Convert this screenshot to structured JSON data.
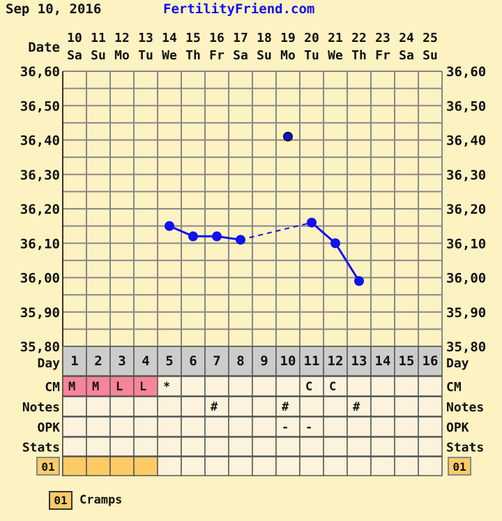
{
  "header": {
    "date": "Sep 10, 2016",
    "site": "FertilityFriend.com"
  },
  "colors": {
    "background": "#fdf2c2",
    "grid": "#888888",
    "line": "#1010f0",
    "menstruation": "#f8849a",
    "cramps": "#fccb66",
    "day_row": "#cccccc",
    "cell": "#fdf3dc"
  },
  "chart_data": {
    "type": "line",
    "xlabel": "Date",
    "dates": [
      "10",
      "11",
      "12",
      "13",
      "14",
      "15",
      "16",
      "17",
      "18",
      "19",
      "20",
      "21",
      "22",
      "23",
      "24",
      "25"
    ],
    "weekdays": [
      "Sa",
      "Su",
      "Mo",
      "Tu",
      "We",
      "Th",
      "Fr",
      "Sa",
      "Su",
      "Mo",
      "Tu",
      "We",
      "Th",
      "Fr",
      "Sa",
      "Su"
    ],
    "ylim": [
      35.8,
      36.6
    ],
    "yticks": [
      "36,60",
      "36,50",
      "36,40",
      "36,30",
      "36,20",
      "36,10",
      "36,00",
      "35,90",
      "35,80"
    ],
    "grid": true,
    "temperatures": [
      null,
      null,
      null,
      null,
      36.15,
      36.12,
      36.12,
      36.11,
      null,
      36.41,
      36.16,
      36.1,
      35.99,
      null,
      null,
      null
    ],
    "discarded": [
      9
    ],
    "dashed_gap": [
      7,
      10
    ]
  },
  "table": {
    "row_labels": {
      "day": "Day",
      "cm": "CM",
      "notes": "Notes",
      "opk": "OPK",
      "stats": "Stats",
      "symptom": "01"
    },
    "days": [
      "1",
      "2",
      "3",
      "4",
      "5",
      "6",
      "7",
      "8",
      "9",
      "10",
      "11",
      "12",
      "13",
      "14",
      "15",
      "16"
    ],
    "cm": [
      "M",
      "M",
      "L",
      "L",
      "*",
      "",
      "",
      "",
      "",
      "",
      "C",
      "C",
      "",
      "",
      "",
      ""
    ],
    "menstruation": [
      true,
      true,
      true,
      true,
      false,
      false,
      false,
      false,
      false,
      false,
      false,
      false,
      false,
      false,
      false,
      false
    ],
    "notes": [
      "",
      "",
      "",
      "",
      "",
      "",
      "#",
      "",
      "",
      "#",
      "",
      "",
      "#",
      "",
      "",
      ""
    ],
    "opk": [
      "",
      "",
      "",
      "",
      "",
      "",
      "",
      "",
      "",
      "-",
      "-",
      "",
      "",
      "",
      "",
      ""
    ],
    "stats": [
      "",
      "",
      "",
      "",
      "",
      "",
      "",
      "",
      "",
      "",
      "",
      "",
      "",
      "",
      "",
      ""
    ],
    "cramps": [
      true,
      true,
      true,
      true,
      false,
      false,
      false,
      false,
      false,
      false,
      false,
      false,
      false,
      false,
      false,
      false
    ]
  },
  "legend": {
    "code": "01",
    "label": "Cramps"
  }
}
